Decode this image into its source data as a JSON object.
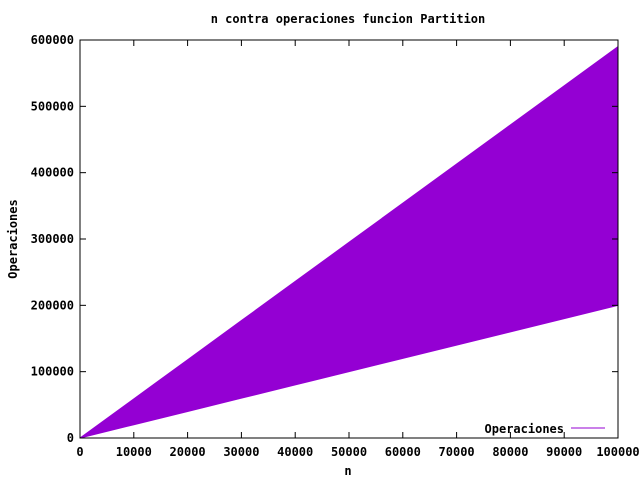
{
  "chart_data": {
    "type": "area",
    "title": "n contra operaciones funcion Partition",
    "xlabel": "n",
    "ylabel": "Operaciones",
    "xlim": [
      0,
      100000
    ],
    "ylim": [
      0,
      600000
    ],
    "xticks": [
      0,
      10000,
      20000,
      30000,
      40000,
      50000,
      60000,
      70000,
      80000,
      90000,
      100000
    ],
    "yticks": [
      0,
      100000,
      200000,
      300000,
      400000,
      500000,
      600000
    ],
    "grid": false,
    "legend": {
      "placement": "bottom-right"
    },
    "series": [
      {
        "name": "Operaciones",
        "color": "#9400d3",
        "x": [
          0,
          10000,
          20000,
          30000,
          40000,
          50000,
          60000,
          70000,
          80000,
          90000,
          100000
        ],
        "y_upper": [
          0,
          59000,
          118000,
          177000,
          236000,
          295000,
          354000,
          413000,
          472000,
          531000,
          590000
        ],
        "y_lower": [
          0,
          20000,
          40000,
          60000,
          80000,
          100000,
          120000,
          140000,
          160000,
          180000,
          200000
        ]
      }
    ]
  }
}
